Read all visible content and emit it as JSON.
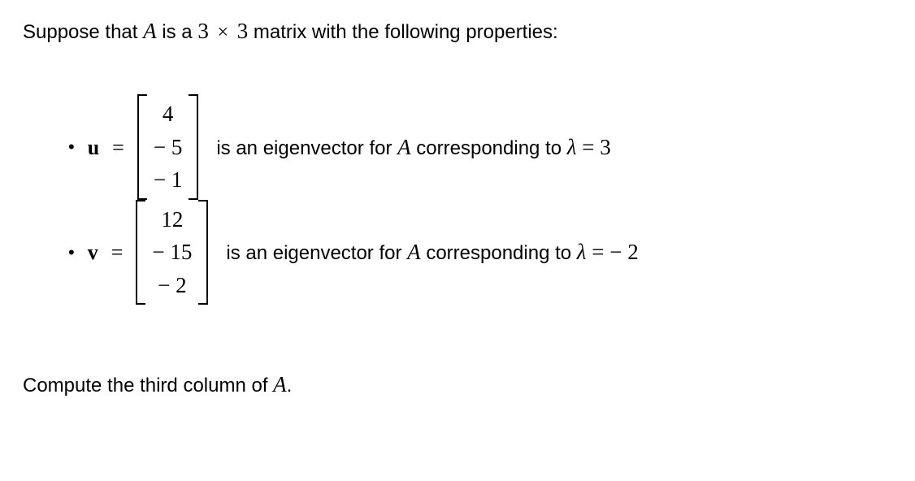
{
  "colors": {
    "text": "#000000",
    "background": "#ffffff"
  },
  "fontsizes": {
    "body_pt": 18,
    "math_pt": 20
  },
  "intro": {
    "pre": "Suppose that ",
    "matrix_var": "A",
    "mid1": " is a ",
    "dim1": "3",
    "times": "×",
    "dim2": "3",
    "post": " matrix with the following properties:"
  },
  "items": [
    {
      "vec_name": "u",
      "entries": [
        "4",
        "− 5",
        "− 1"
      ],
      "desc_pre": "is an eigenvector for ",
      "desc_var": "A",
      "desc_mid": " corresponding to ",
      "lambda_sym": "λ",
      "eq": " = ",
      "lambda_val": "3"
    },
    {
      "vec_name": "v",
      "entries": [
        "12",
        "− 15",
        "− 2"
      ],
      "desc_pre": "is an eigenvector for ",
      "desc_var": "A",
      "desc_mid": " corresponding to ",
      "lambda_sym": "λ",
      "eq": " = ",
      "lambda_val": " − 2"
    }
  ],
  "footer": {
    "pre": "Compute the third column of ",
    "var": "A",
    "post": "."
  }
}
